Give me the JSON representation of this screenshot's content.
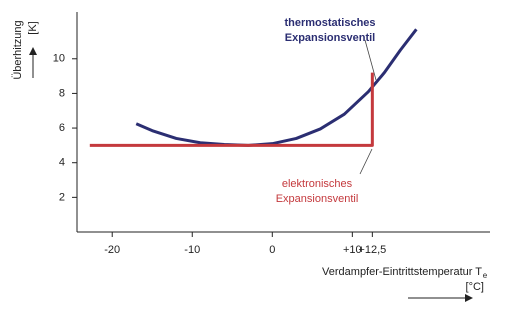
{
  "chart_data": {
    "type": "line",
    "ylabel": "Überhitzung",
    "yunit": "[K]",
    "xlabel": "Verdampfer-Eintrittstemperatur T",
    "xlabel_subscript": "e",
    "xunit": "[°C]",
    "xlim": [
      -24.4,
      27.2
    ],
    "ylim": [
      0,
      12.7
    ],
    "xticks": [
      -20,
      -10,
      0,
      {
        "value": 10,
        "label": "+10"
      },
      {
        "value": 12.5,
        "label": "+12,5"
      }
    ],
    "yticks": [
      2,
      4,
      6,
      8,
      10
    ],
    "series": [
      {
        "color": "#2b2e72",
        "x": [
          -17,
          -15,
          -12,
          -9,
          -6,
          -3,
          0,
          3,
          6,
          9,
          12,
          14,
          16,
          18
        ],
        "values": [
          6.25,
          5.85,
          5.4,
          5.15,
          5.05,
          5.0,
          5.1,
          5.4,
          5.95,
          6.8,
          8.1,
          9.2,
          10.5,
          11.7
        ]
      },
      {
        "color": "#c4393d",
        "x": [
          -22.8,
          12.5,
          12.5
        ],
        "values": [
          5,
          5,
          9.2
        ]
      }
    ],
    "annotations": [
      {
        "lines": [
          "thermostatisches",
          "Expansionsventil"
        ],
        "color": "#2b2e72"
      },
      {
        "lines": [
          "elektronisches",
          "Expansionsventil"
        ],
        "color": "#c4393d"
      }
    ]
  }
}
